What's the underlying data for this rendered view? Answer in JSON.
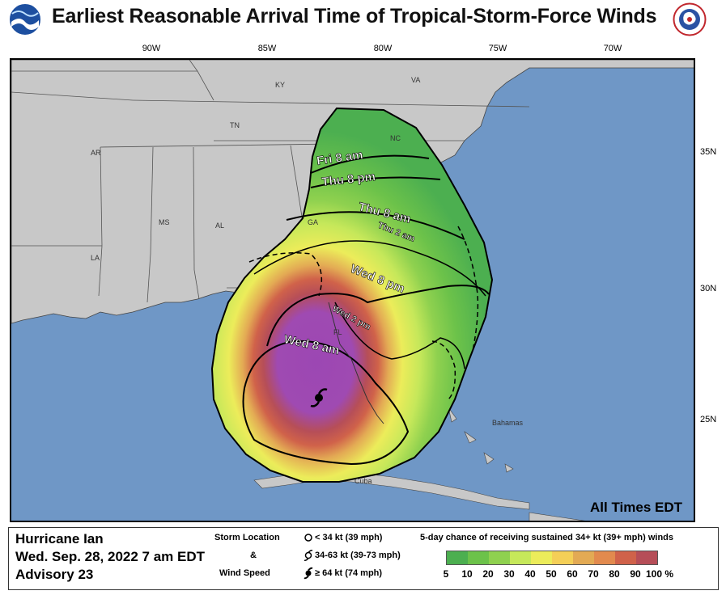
{
  "header": {
    "title": "Earliest Reasonable Arrival Time of Tropical-Storm-Force Winds",
    "left_logo": "noaa-logo",
    "right_logo": "national-weather-service-logo"
  },
  "map": {
    "longitude_labels": [
      "90W",
      "85W",
      "80W",
      "75W",
      "70W"
    ],
    "latitude_labels": [
      "35N",
      "30N",
      "25N"
    ],
    "state_labels": [
      "KY",
      "VA",
      "TN",
      "NC",
      "AR",
      "MS",
      "AL",
      "GA",
      "LA",
      "FL"
    ],
    "region_labels": [
      "Bahamas",
      "Cuba"
    ],
    "arrival_labels": [
      "Fri 8 am",
      "Thu 8 pm",
      "Thu 8 am",
      "Thu 2 am",
      "Wed 8 pm",
      "Wed 2 pm",
      "Wed 8 am"
    ],
    "all_times": "All Times EDT",
    "storm_marker": "hurricane-symbol"
  },
  "footer": {
    "storm_name": "Hurricane Ian",
    "date_time": "Wed. Sep. 28, 2022  7 am EDT",
    "advisory": "Advisory 23",
    "legend_storm_location": "Storm Location",
    "legend_amp": "&",
    "legend_wind_speed": "Wind Speed",
    "legend_levels": [
      "< 34 kt (39 mph)",
      "34-63 kt (39-73 mph)",
      "≥ 64 kt (74 mph)"
    ],
    "probability_title": "5-day chance of receiving sustained 34+ kt (39+ mph) winds",
    "probability_labels": [
      "5",
      "10",
      "20",
      "30",
      "40",
      "50",
      "60",
      "70",
      "80",
      "90",
      "100 %"
    ],
    "probability_colors": [
      "#4caf50",
      "#6cc24a",
      "#8fd14f",
      "#c6e85a",
      "#ecec5a",
      "#f4cf57",
      "#e3aa54",
      "#e28a4e",
      "#d0624a",
      "#b64e58",
      "#9f4ab2"
    ]
  }
}
